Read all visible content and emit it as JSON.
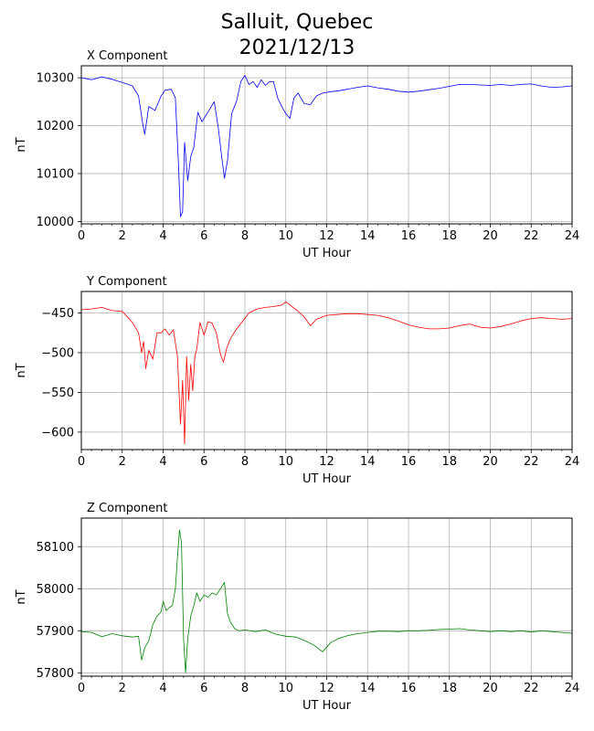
{
  "figure": {
    "title_line1": "Salluit, Quebec",
    "title_line2": "2021/12/13"
  },
  "chart_data": [
    {
      "type": "line",
      "title": "X Component",
      "xlabel": "UT Hour",
      "ylabel": "nT",
      "xlim": [
        0,
        24
      ],
      "ylim": [
        9995,
        10325
      ],
      "xticks": [
        0,
        2,
        4,
        6,
        8,
        10,
        12,
        14,
        16,
        18,
        20,
        22,
        24
      ],
      "yticks": [
        10000,
        10100,
        10200,
        10300
      ],
      "grid": true,
      "color": "#0000ff",
      "x": [
        0,
        0.5,
        1,
        1.5,
        2,
        2.5,
        2.8,
        3.0,
        3.1,
        3.3,
        3.6,
        3.9,
        4.1,
        4.4,
        4.6,
        4.75,
        4.85,
        4.95,
        5.05,
        5.2,
        5.35,
        5.5,
        5.7,
        5.9,
        6.1,
        6.3,
        6.5,
        6.7,
        6.85,
        7.0,
        7.15,
        7.35,
        7.6,
        7.8,
        8.0,
        8.2,
        8.4,
        8.6,
        8.8,
        9.0,
        9.2,
        9.4,
        9.6,
        9.8,
        10.0,
        10.2,
        10.4,
        10.6,
        10.9,
        11.2,
        11.5,
        11.8,
        12.2,
        12.6,
        13.0,
        13.5,
        14.0,
        14.5,
        15.0,
        15.5,
        16.0,
        16.5,
        17.0,
        17.5,
        18.0,
        18.5,
        19.0,
        19.5,
        20.0,
        20.5,
        21.0,
        21.5,
        22.0,
        22.5,
        23.0,
        23.5,
        24.0
      ],
      "y": [
        10300,
        10296,
        10302,
        10297,
        10290,
        10283,
        10262,
        10205,
        10182,
        10240,
        10232,
        10262,
        10274,
        10276,
        10258,
        10120,
        10010,
        10020,
        10165,
        10085,
        10135,
        10155,
        10228,
        10208,
        10222,
        10236,
        10250,
        10195,
        10140,
        10090,
        10128,
        10225,
        10252,
        10292,
        10305,
        10286,
        10292,
        10280,
        10296,
        10284,
        10292,
        10292,
        10258,
        10240,
        10225,
        10215,
        10258,
        10268,
        10246,
        10244,
        10262,
        10268,
        10271,
        10273,
        10276,
        10280,
        10283,
        10279,
        10276,
        10272,
        10270,
        10272,
        10275,
        10278,
        10282,
        10286,
        10286,
        10285,
        10284,
        10286,
        10284,
        10286,
        10287,
        10283,
        10280,
        10281,
        10283
      ]
    },
    {
      "type": "line",
      "title": "Y Component",
      "xlabel": "UT Hour",
      "ylabel": "nT",
      "xlim": [
        0,
        24
      ],
      "ylim": [
        -622,
        -423
      ],
      "xticks": [
        0,
        2,
        4,
        6,
        8,
        10,
        12,
        14,
        16,
        18,
        20,
        22,
        24
      ],
      "yticks": [
        -450,
        -500,
        -550,
        -600
      ],
      "grid": true,
      "color": "#ff0000",
      "x": [
        0,
        0.5,
        1,
        1.5,
        2,
        2.5,
        2.8,
        2.95,
        3.05,
        3.15,
        3.3,
        3.5,
        3.7,
        3.9,
        4.1,
        4.3,
        4.5,
        4.7,
        4.85,
        4.95,
        5.05,
        5.15,
        5.25,
        5.35,
        5.45,
        5.55,
        5.65,
        5.8,
        6.0,
        6.2,
        6.4,
        6.6,
        6.8,
        6.95,
        7.1,
        7.3,
        7.6,
        7.9,
        8.2,
        8.6,
        9.0,
        9.4,
        9.8,
        10.0,
        10.3,
        10.6,
        10.9,
        11.2,
        11.5,
        12.0,
        12.5,
        13.0,
        13.5,
        14.0,
        14.5,
        15.0,
        15.5,
        16.0,
        16.5,
        17.0,
        17.5,
        18.0,
        18.5,
        19.0,
        19.5,
        20.0,
        20.5,
        21.0,
        21.5,
        22.0,
        22.5,
        23.0,
        23.5,
        24.0
      ],
      "y": [
        -446,
        -445,
        -443,
        -447,
        -448,
        -462,
        -475,
        -500,
        -486,
        -520,
        -497,
        -508,
        -475,
        -475,
        -470,
        -478,
        -471,
        -505,
        -590,
        -535,
        -615,
        -505,
        -560,
        -515,
        -548,
        -505,
        -495,
        -462,
        -478,
        -461,
        -463,
        -475,
        -502,
        -512,
        -495,
        -482,
        -470,
        -460,
        -450,
        -445,
        -443,
        -442,
        -440,
        -436,
        -442,
        -448,
        -455,
        -466,
        -458,
        -453,
        -452,
        -451,
        -451,
        -452,
        -453,
        -456,
        -460,
        -465,
        -468,
        -470,
        -470,
        -469,
        -466,
        -464,
        -468,
        -469,
        -467,
        -464,
        -460,
        -457,
        -456,
        -457,
        -458,
        -457
      ]
    },
    {
      "type": "line",
      "title": "Z Component",
      "xlabel": "UT Hour",
      "ylabel": "nT",
      "xlim": [
        0,
        24
      ],
      "ylim": [
        57792,
        58168
      ],
      "xticks": [
        0,
        2,
        4,
        6,
        8,
        10,
        12,
        14,
        16,
        18,
        20,
        22,
        24
      ],
      "yticks": [
        57800,
        57900,
        58000,
        58100
      ],
      "grid": true,
      "color": "#008000",
      "x": [
        0,
        0.5,
        1,
        1.5,
        2,
        2.5,
        2.8,
        2.95,
        3.1,
        3.3,
        3.5,
        3.7,
        3.9,
        4.0,
        4.15,
        4.3,
        4.45,
        4.6,
        4.7,
        4.8,
        4.9,
        5.0,
        5.1,
        5.2,
        5.35,
        5.5,
        5.65,
        5.8,
        6.0,
        6.2,
        6.4,
        6.6,
        6.8,
        7.0,
        7.15,
        7.3,
        7.5,
        7.7,
        8.0,
        8.5,
        9.0,
        9.5,
        10.0,
        10.5,
        11.0,
        11.4,
        11.8,
        12.2,
        12.6,
        13.0,
        13.5,
        14.0,
        14.5,
        15.0,
        15.5,
        16.0,
        16.5,
        17.0,
        17.5,
        18.0,
        18.5,
        19.0,
        19.5,
        20.0,
        20.5,
        21.0,
        21.5,
        22.0,
        22.5,
        23.0,
        23.5,
        24.0
      ],
      "y": [
        57898,
        57896,
        57886,
        57893,
        57888,
        57885,
        57887,
        57830,
        57860,
        57876,
        57915,
        57935,
        57945,
        57970,
        57948,
        57955,
        57960,
        58000,
        58075,
        58140,
        58110,
        57880,
        57800,
        57880,
        57935,
        57960,
        57990,
        57970,
        57985,
        57980,
        57990,
        57985,
        58000,
        58015,
        57940,
        57920,
        57905,
        57900,
        57902,
        57898,
        57902,
        57892,
        57887,
        57885,
        57875,
        57865,
        57850,
        57872,
        57882,
        57888,
        57893,
        57896,
        57899,
        57899,
        57898,
        57900,
        57900,
        57901,
        57903,
        57904,
        57905,
        57902,
        57900,
        57898,
        57900,
        57898,
        57900,
        57897,
        57900,
        57898,
        57896,
        57894
      ]
    }
  ]
}
